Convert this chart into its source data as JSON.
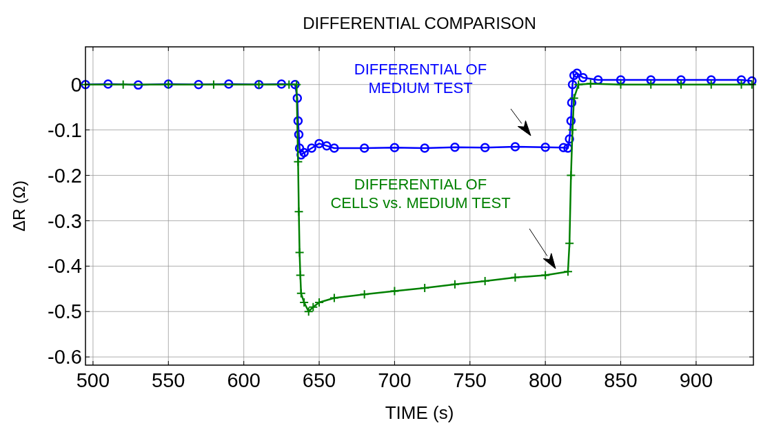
{
  "chart_data": {
    "type": "line",
    "title": "DIFFERENTIAL COMPARISON",
    "xlabel": "TIME (s)",
    "ylabel": "ΔR (Ω)",
    "xlim": [
      495,
      938
    ],
    "ylim": [
      -0.618,
      0.083
    ],
    "xticks": [
      500,
      550,
      600,
      650,
      700,
      750,
      800,
      850,
      900
    ],
    "yticks": [
      0,
      -0.1,
      -0.2,
      -0.3,
      -0.4,
      -0.5,
      -0.6
    ],
    "grid": true,
    "line_style": "solid",
    "annotations": [
      "DIFFERENTIAL OF\nMEDIUM TEST",
      "DIFFERENTIAL OF\nCELLS vs. MEDIUM TEST"
    ],
    "series": [
      {
        "color": "#0000ff",
        "marker": "circle",
        "x": [
          495,
          510,
          530,
          550,
          570,
          590,
          610,
          625,
          634,
          635.5,
          636,
          636.5,
          637,
          638,
          640,
          645,
          650,
          655,
          660,
          680,
          700,
          720,
          740,
          760,
          780,
          800,
          812,
          815,
          816,
          817,
          817.5,
          818,
          819,
          821,
          825,
          835,
          850,
          870,
          890,
          910,
          930,
          937
        ],
        "values": [
          0,
          0.001,
          -0.001,
          0.001,
          0,
          0.001,
          0,
          0.001,
          0,
          -0.03,
          -0.08,
          -0.11,
          -0.14,
          -0.155,
          -0.15,
          -0.14,
          -0.13,
          -0.135,
          -0.14,
          -0.14,
          -0.139,
          -0.14,
          -0.138,
          -0.139,
          -0.137,
          -0.138,
          -0.139,
          -0.14,
          -0.12,
          -0.08,
          -0.04,
          0,
          0.02,
          0.025,
          0.015,
          0.01,
          0.01,
          0.01,
          0.01,
          0.01,
          0.01,
          0.008
        ]
      },
      {
        "color": "#008000",
        "marker": "cross",
        "x": [
          495,
          520,
          550,
          580,
          610,
          630,
          635,
          636,
          636.5,
          637,
          637.5,
          638,
          640,
          643,
          646,
          650,
          660,
          680,
          700,
          720,
          740,
          760,
          780,
          800,
          815,
          816,
          817,
          818,
          819,
          822,
          830,
          850,
          870,
          890,
          910,
          930,
          937
        ],
        "values": [
          0,
          0,
          0,
          0,
          0,
          0,
          0,
          -0.17,
          -0.28,
          -0.37,
          -0.42,
          -0.46,
          -0.48,
          -0.5,
          -0.49,
          -0.48,
          -0.47,
          -0.462,
          -0.455,
          -0.448,
          -0.44,
          -0.433,
          -0.425,
          -0.42,
          -0.412,
          -0.35,
          -0.2,
          -0.1,
          -0.03,
          0,
          0.002,
          0,
          0,
          0,
          0,
          0,
          0
        ]
      }
    ]
  }
}
